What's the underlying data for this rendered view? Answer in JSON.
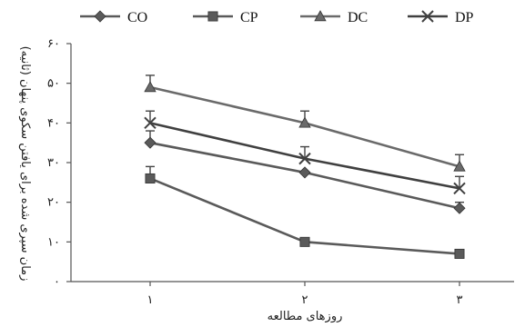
{
  "chart_data": {
    "type": "line",
    "x": [
      1,
      2,
      3
    ],
    "x_tick_labels": [
      "۱",
      "۲",
      "۳"
    ],
    "y_tick_labels": [
      "۰",
      "۱۰",
      "۲۰",
      "۳۰",
      "۴۰",
      "۵۰",
      "۶۰"
    ],
    "ylim": [
      0,
      60
    ],
    "xlabel": "روزهای مطالعه",
    "ylabel": "زمان سپری شده برای یافتن سکوی پنهان (ثانیه)",
    "grid": false,
    "legend_position": "top",
    "series": [
      {
        "name": "CO",
        "marker": "diamond",
        "color": "#5a5a5a",
        "values": [
          35,
          27.5,
          18.5
        ],
        "errors": [
          3,
          0,
          1.5
        ]
      },
      {
        "name": "CP",
        "marker": "square",
        "color": "#5a5a5a",
        "values": [
          26,
          10,
          7
        ],
        "errors": [
          3,
          0,
          0
        ]
      },
      {
        "name": "DC",
        "marker": "triangle",
        "color": "#6a6a6a",
        "values": [
          49,
          40,
          29
        ],
        "errors": [
          3,
          3,
          3
        ]
      },
      {
        "name": "DP",
        "marker": "x",
        "color": "#404040",
        "values": [
          40,
          31,
          23.5
        ],
        "errors": [
          3,
          3,
          3
        ]
      }
    ]
  }
}
